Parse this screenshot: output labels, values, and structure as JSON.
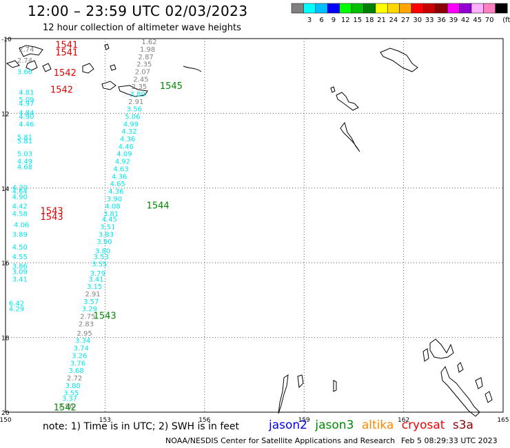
{
  "header": {
    "title": "12:00 – 23:59 UTC 02/03/2023",
    "subtitle": "12 hour collection of altimeter wave heights"
  },
  "color_scale": {
    "colors": [
      "#808080",
      "#00ffff",
      "#00bfff",
      "#0000ff",
      "#00ff00",
      "#00c000",
      "#008000",
      "#ffff00",
      "#ffd700",
      "#ffa500",
      "#ff0000",
      "#c80000",
      "#8b0000",
      "#ff00ff",
      "#9400d3",
      "#ffb0ff",
      "#ff80c0",
      "#000000"
    ],
    "labels": [
      "3",
      "6",
      "9",
      "12",
      "15",
      "18",
      "21",
      "24",
      "27",
      "30",
      "33",
      "36",
      "39",
      "42",
      "45",
      "70"
    ],
    "unit": "(ft)"
  },
  "map": {
    "lat_ticks": [
      "-10",
      "12",
      "14",
      "16",
      "18",
      "20"
    ],
    "lon_ticks": [
      "150",
      "153",
      "156",
      "159",
      "162",
      "165"
    ],
    "lon_range": [
      150,
      165
    ],
    "lat_range": [
      -10,
      -20
    ],
    "tracks": [
      {
        "name": "gray-cyan-track",
        "points": [
          {
            "lon": 151.6,
            "lat": -19.9,
            "v": "2.96",
            "c": "#808080"
          },
          {
            "lon": 151.7,
            "lat": -19.7,
            "v": "3.37",
            "c": "#00e5ee"
          },
          {
            "lon": 151.75,
            "lat": -19.55,
            "v": "3.55",
            "c": "#00e5ee"
          },
          {
            "lon": 151.8,
            "lat": -19.35,
            "v": "3.80",
            "c": "#00e5ee"
          },
          {
            "lon": 151.85,
            "lat": -19.15,
            "v": "2.72",
            "c": "#808080"
          },
          {
            "lon": 151.9,
            "lat": -18.95,
            "v": "3.68",
            "c": "#00e5ee"
          },
          {
            "lon": 151.95,
            "lat": -18.75,
            "v": "3.76",
            "c": "#00e5ee"
          },
          {
            "lon": 152.0,
            "lat": -18.55,
            "v": "3.26",
            "c": "#00e5ee"
          },
          {
            "lon": 152.05,
            "lat": -18.35,
            "v": "3.74",
            "c": "#00e5ee"
          },
          {
            "lon": 152.1,
            "lat": -18.15,
            "v": "3.34",
            "c": "#00e5ee"
          },
          {
            "lon": 152.15,
            "lat": -17.95,
            "v": "2.95",
            "c": "#808080"
          },
          {
            "lon": 152.2,
            "lat": -17.7,
            "v": "2.83",
            "c": "#808080"
          },
          {
            "lon": 152.25,
            "lat": -17.5,
            "v": "2.75",
            "c": "#808080"
          },
          {
            "lon": 152.3,
            "lat": -17.3,
            "v": "3.29",
            "c": "#00e5ee"
          },
          {
            "lon": 152.35,
            "lat": -17.1,
            "v": "3.57",
            "c": "#00e5ee"
          },
          {
            "lon": 152.4,
            "lat": -16.9,
            "v": "2.91",
            "c": "#808080"
          },
          {
            "lon": 152.45,
            "lat": -16.7,
            "v": "3.15",
            "c": "#00e5ee"
          },
          {
            "lon": 152.5,
            "lat": -16.5,
            "v": "3.41",
            "c": "#00e5ee"
          },
          {
            "lon": 152.55,
            "lat": -16.35,
            "v": "3.79",
            "c": "#00e5ee"
          },
          {
            "lon": 152.6,
            "lat": -16.1,
            "v": "3.55",
            "c": "#00e5ee"
          },
          {
            "lon": 152.65,
            "lat": -15.9,
            "v": "3.53",
            "c": "#00e5ee"
          },
          {
            "lon": 152.7,
            "lat": -15.75,
            "v": "3.80",
            "c": "#00e5ee"
          },
          {
            "lon": 152.75,
            "lat": -15.5,
            "v": "3.90",
            "c": "#00e5ee"
          },
          {
            "lon": 152.8,
            "lat": -15.3,
            "v": "3.83",
            "c": "#00e5ee"
          },
          {
            "lon": 152.85,
            "lat": -15.1,
            "v": "3.51",
            "c": "#00e5ee"
          },
          {
            "lon": 152.9,
            "lat": -14.9,
            "v": "4.45",
            "c": "#00e5ee"
          },
          {
            "lon": 152.95,
            "lat": -14.75,
            "v": "3.81",
            "c": "#00e5ee"
          },
          {
            "lon": 153.0,
            "lat": -14.55,
            "v": "4.08",
            "c": "#00e5ee"
          },
          {
            "lon": 153.05,
            "lat": -14.35,
            "v": "3.90",
            "c": "#00e5ee"
          },
          {
            "lon": 153.1,
            "lat": -14.15,
            "v": "4.36",
            "c": "#00e5ee"
          },
          {
            "lon": 153.15,
            "lat": -13.95,
            "v": "4.65",
            "c": "#00e5ee"
          },
          {
            "lon": 153.2,
            "lat": -13.75,
            "v": "4.36",
            "c": "#00e5ee"
          },
          {
            "lon": 153.25,
            "lat": -13.55,
            "v": "4.63",
            "c": "#00e5ee"
          },
          {
            "lon": 153.3,
            "lat": -13.35,
            "v": "4.92",
            "c": "#00e5ee"
          },
          {
            "lon": 153.35,
            "lat": -13.15,
            "v": "4.09",
            "c": "#00e5ee"
          },
          {
            "lon": 153.4,
            "lat": -12.95,
            "v": "4.46",
            "c": "#00e5ee"
          },
          {
            "lon": 153.45,
            "lat": -12.75,
            "v": "4.36",
            "c": "#00e5ee"
          },
          {
            "lon": 153.5,
            "lat": -12.55,
            "v": "4.32",
            "c": "#00e5ee"
          },
          {
            "lon": 153.55,
            "lat": -12.35,
            "v": "4.99",
            "c": "#00e5ee"
          },
          {
            "lon": 153.6,
            "lat": -12.15,
            "v": "5.06",
            "c": "#00e5ee"
          },
          {
            "lon": 153.65,
            "lat": -11.95,
            "v": "3.56",
            "c": "#00e5ee"
          },
          {
            "lon": 153.7,
            "lat": -11.75,
            "v": "2.91",
            "c": "#808080"
          },
          {
            "lon": 153.75,
            "lat": -11.55,
            "v": "3.89",
            "c": "#00e5ee"
          },
          {
            "lon": 153.8,
            "lat": -11.35,
            "v": "2.35",
            "c": "#808080"
          },
          {
            "lon": 153.85,
            "lat": -11.15,
            "v": "2.45",
            "c": "#808080"
          },
          {
            "lon": 153.9,
            "lat": -10.95,
            "v": "2.07",
            "c": "#808080"
          },
          {
            "lon": 153.95,
            "lat": -10.75,
            "v": "2.35",
            "c": "#808080"
          },
          {
            "lon": 154.0,
            "lat": -10.55,
            "v": "2.87",
            "c": "#808080"
          },
          {
            "lon": 154.05,
            "lat": -10.35,
            "v": "1.98",
            "c": "#808080"
          },
          {
            "lon": 154.1,
            "lat": -10.15,
            "v": "1.62",
            "c": "#808080"
          }
        ]
      },
      {
        "name": "left-edge-track",
        "points": [
          {
            "lon": 150.1,
            "lat": -17.3,
            "v": "4.29",
            "c": "#00e5ee"
          },
          {
            "lon": 150.1,
            "lat": -17.15,
            "v": "6.42",
            "c": "#00e5ee"
          },
          {
            "lon": 150.2,
            "lat": -16.5,
            "v": "3.41",
            "c": "#00e5ee"
          },
          {
            "lon": 150.2,
            "lat": -16.3,
            "v": "3.09",
            "c": "#00e5ee"
          },
          {
            "lon": 150.2,
            "lat": -16.15,
            "v": "3.86",
            "c": "#00e5ee"
          },
          {
            "lon": 150.2,
            "lat": -15.9,
            "v": "4.55",
            "c": "#00e5ee"
          },
          {
            "lon": 150.2,
            "lat": -15.65,
            "v": "4.50",
            "c": "#00e5ee"
          },
          {
            "lon": 150.2,
            "lat": -15.3,
            "v": "3.89",
            "c": "#00e5ee"
          },
          {
            "lon": 150.25,
            "lat": -15.05,
            "v": "4.06",
            "c": "#00e5ee"
          },
          {
            "lon": 150.2,
            "lat": -14.75,
            "v": "4.58",
            "c": "#00e5ee"
          },
          {
            "lon": 150.2,
            "lat": -14.55,
            "v": "4.42",
            "c": "#00e5ee"
          },
          {
            "lon": 150.2,
            "lat": -14.3,
            "v": "4.90",
            "c": "#00e5ee"
          },
          {
            "lon": 150.2,
            "lat": -14.15,
            "v": "4.64",
            "c": "#00e5ee"
          },
          {
            "lon": 150.2,
            "lat": -14.05,
            "v": "4.20",
            "c": "#00e5ee"
          },
          {
            "lon": 150.35,
            "lat": -13.5,
            "v": "4.68",
            "c": "#00e5ee"
          },
          {
            "lon": 150.35,
            "lat": -13.35,
            "v": "4.49",
            "c": "#00e5ee"
          },
          {
            "lon": 150.35,
            "lat": -13.15,
            "v": "5.03",
            "c": "#00e5ee"
          },
          {
            "lon": 150.35,
            "lat": -12.8,
            "v": "5.81",
            "c": "#00e5ee"
          },
          {
            "lon": 150.35,
            "lat": -12.7,
            "v": "5.81",
            "c": "#00e5ee"
          },
          {
            "lon": 150.4,
            "lat": -12.35,
            "v": "4.46",
            "c": "#00e5ee"
          },
          {
            "lon": 150.4,
            "lat": -12.15,
            "v": "4.90",
            "c": "#00e5ee"
          },
          {
            "lon": 150.4,
            "lat": -12.05,
            "v": "4.84",
            "c": "#00e5ee"
          },
          {
            "lon": 150.4,
            "lat": -11.8,
            "v": "4.97",
            "c": "#00e5ee"
          },
          {
            "lon": 150.4,
            "lat": -11.7,
            "v": "5.09",
            "c": "#00e5ee"
          },
          {
            "lon": 150.4,
            "lat": -11.5,
            "v": "4.81",
            "c": "#00e5ee"
          },
          {
            "lon": 150.35,
            "lat": -10.95,
            "v": "3.66",
            "c": "#00e5ee"
          },
          {
            "lon": 150.35,
            "lat": -10.65,
            "v": "2.74",
            "c": "#808080"
          },
          {
            "lon": 150.4,
            "lat": -10.35,
            "v": "2.74",
            "c": "#808080"
          }
        ]
      }
    ],
    "pass_labels": [
      {
        "text": "1541",
        "lon": 151.5,
        "lat": -10.25,
        "c": "#dd0000"
      },
      {
        "text": "1541",
        "lon": 151.5,
        "lat": -10.45,
        "c": "#dd0000"
      },
      {
        "text": "1542",
        "lon": 151.45,
        "lat": -11.0,
        "c": "#dd0000"
      },
      {
        "text": "1542",
        "lon": 151.35,
        "lat": -11.45,
        "c": "#dd0000"
      },
      {
        "text": "1545",
        "lon": 154.65,
        "lat": -11.35,
        "c": "#008800"
      },
      {
        "text": "1544",
        "lon": 154.25,
        "lat": -14.55,
        "c": "#008800"
      },
      {
        "text": "1543",
        "lon": 151.05,
        "lat": -14.7,
        "c": "#dd0000"
      },
      {
        "text": "1543",
        "lon": 151.05,
        "lat": -14.85,
        "c": "#dd0000"
      },
      {
        "text": "1543",
        "lon": 152.65,
        "lat": -17.5,
        "c": "#008800"
      },
      {
        "text": "1542",
        "lon": 151.45,
        "lat": -19.95,
        "c": "#008800"
      }
    ]
  },
  "footer": {
    "note": "note: 1) Time is in UTC; 2) SWH is in feet",
    "satellites": [
      {
        "name": "jason2",
        "color": "#0000ee"
      },
      {
        "name": "jason3",
        "color": "#008800"
      },
      {
        "name": "altika",
        "color": "#ff8800"
      },
      {
        "name": "cryosat",
        "color": "#ee0000"
      },
      {
        "name": "s3a",
        "color": "#8b0000"
      }
    ],
    "credit": "NOAA/NESDIS Center for Satellite Applications and Research",
    "timestamp": "Feb  5 08:29:33 UTC 2023"
  }
}
